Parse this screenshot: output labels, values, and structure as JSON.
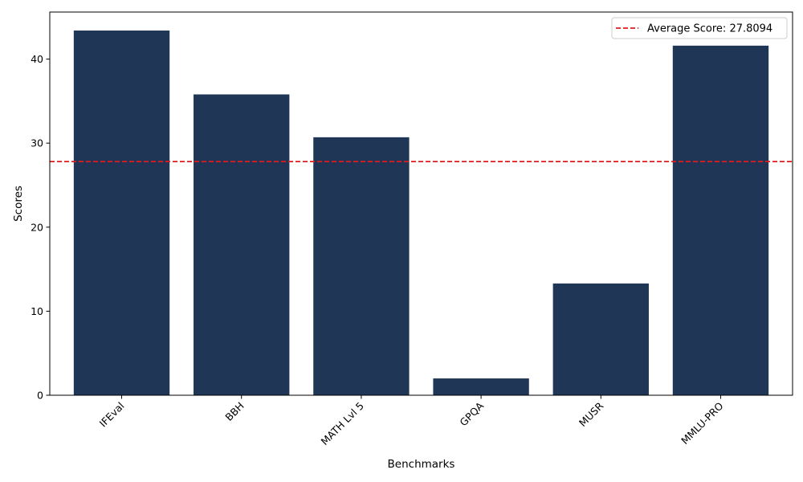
{
  "chart_data": {
    "type": "bar",
    "title": "",
    "xlabel": "Benchmarks",
    "ylabel": "Scores",
    "categories": [
      "IFEval",
      "BBH",
      "MATH Lvl 5",
      "GPQA",
      "MUSR",
      "MMLU-PRO"
    ],
    "values": [
      43.4,
      35.8,
      30.7,
      2.0,
      13.3,
      41.6
    ],
    "ylim": [
      0,
      45.6
    ],
    "yticks": [
      0,
      10,
      20,
      30,
      40
    ],
    "bar_color": "#1f3657",
    "grid": false,
    "average_line": {
      "value": 27.8094,
      "color": "#e31a1c",
      "style": "dashed",
      "label": "Average Score: 27.8094"
    },
    "legend_position": "top-right",
    "xtick_rotation": 45
  }
}
